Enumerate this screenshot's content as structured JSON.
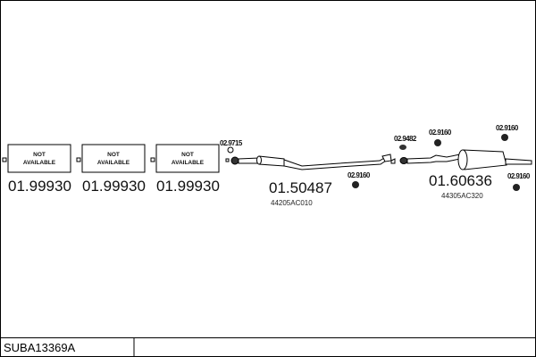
{
  "title": "SUBA13369A",
  "unavailable_parts": [
    {
      "label_line1": "NOT",
      "label_line2": "AVAILABLE",
      "code": "01.99930"
    },
    {
      "label_line1": "NOT",
      "label_line2": "AVAILABLE",
      "code": "01.99930"
    },
    {
      "label_line1": "NOT",
      "label_line2": "AVAILABLE",
      "code": "01.99930"
    }
  ],
  "parts": [
    {
      "code": "01.50487",
      "oem": "44205AC010"
    },
    {
      "code": "01.60636",
      "oem": "44305AC320"
    }
  ],
  "accessories": [
    "02.9715",
    "02.9160",
    "02.9482",
    "02.9160",
    "02.9160",
    "02.9160"
  ]
}
